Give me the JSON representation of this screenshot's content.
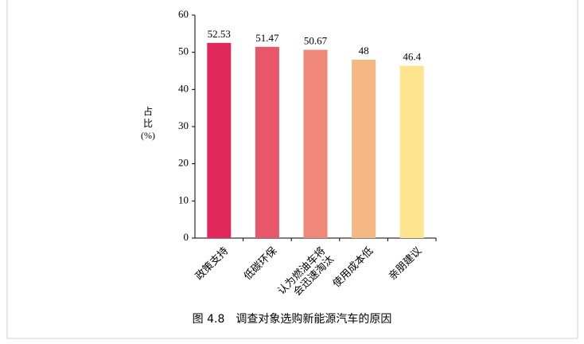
{
  "chart_data": {
    "type": "bar",
    "title": "图 4.8　调查对象选购新能源汽车的原因",
    "y_label": "占比(%)",
    "categories": [
      "政策支持",
      "低碳环保",
      "认为燃油车将会迅速淘汰",
      "使用成本低",
      "亲朋建议"
    ],
    "values": [
      52.53,
      51.47,
      50.67,
      48,
      46.4
    ],
    "colors": [
      "#e0285a",
      "#e8566a",
      "#ef8878",
      "#f5b885",
      "#fde48e"
    ],
    "ylim": [
      0,
      60
    ],
    "yticks": [
      0,
      10,
      20,
      30,
      40,
      50,
      60
    ],
    "grid": false
  }
}
